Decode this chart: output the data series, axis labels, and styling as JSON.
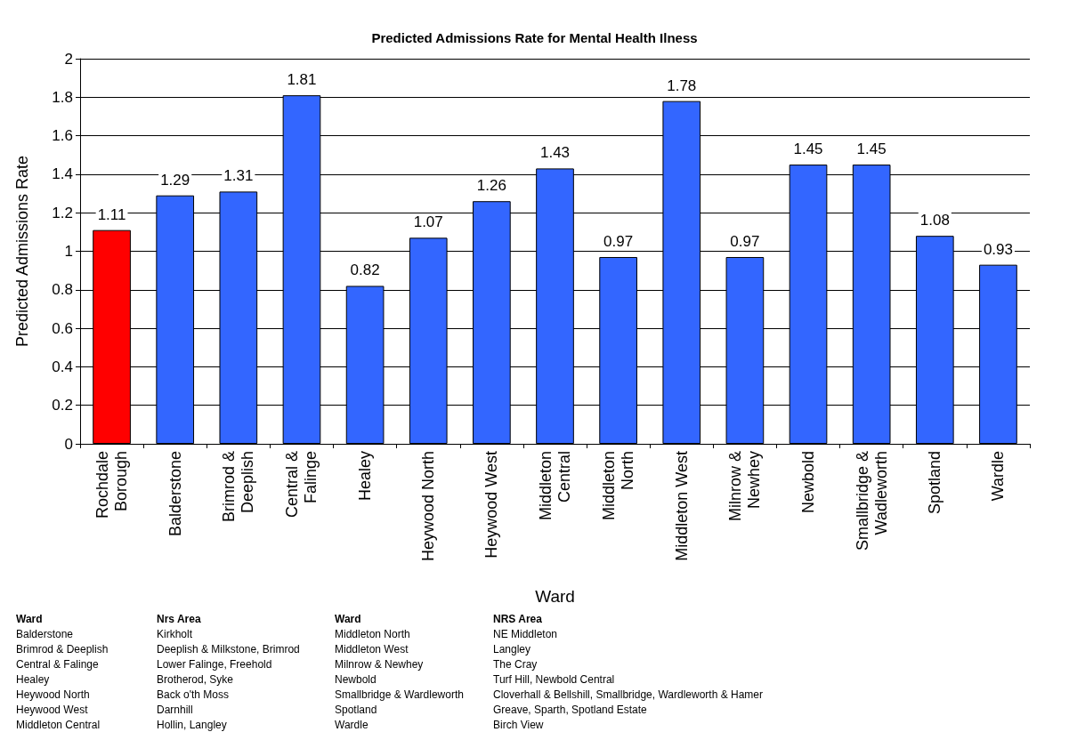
{
  "chart_data": {
    "type": "bar",
    "title": "Predicted Admissions Rate for Mental Health Ilness",
    "xlabel": "Ward",
    "ylabel": "Predicted Admissions Rate",
    "categories": [
      "Rochdale Borough",
      "Balderstone",
      "Brimrod & Deeplish",
      "Central & Falinge",
      "Healey",
      "Heywood North",
      "Heywood West",
      "Middleton Central",
      "Middleton North",
      "Middleton West",
      "Milnrow & Newhey",
      "Newbold",
      "Smallbridge & Wadleworth",
      "Spotland",
      "Wardle"
    ],
    "values": [
      1.11,
      1.29,
      1.31,
      1.81,
      0.82,
      1.07,
      1.26,
      1.43,
      0.97,
      1.78,
      0.97,
      1.45,
      1.45,
      1.08,
      0.93
    ],
    "colors": [
      "#ff0000",
      "#3366ff",
      "#3366ff",
      "#3366ff",
      "#3366ff",
      "#3366ff",
      "#3366ff",
      "#3366ff",
      "#3366ff",
      "#3366ff",
      "#3366ff",
      "#3366ff",
      "#3366ff",
      "#3366ff",
      "#3366ff"
    ],
    "ylim": [
      0,
      2
    ],
    "yticks": [
      0,
      0.2,
      0.4,
      0.6,
      0.8,
      1,
      1.2,
      1.4,
      1.6,
      1.8,
      2
    ],
    "grid": "y",
    "data_labels": true,
    "annotations": [
      "Ward\nBalderstone\nBrimrod & Deeplish\nCentral & Falinge\nHealey\nHeywood North\nHeywood West\nMiddleton Central",
      "Nrs Area\nKirkholt\nDeeplish & Milkstone, Brimrod\nLower Falinge, Freehold\nBrotherod, Syke\nBack o'th Moss\nDarnhill\nHollin, Langley",
      "Ward\nMiddleton North\nMiddleton West\nMilnrow & Newhey\nNewbold\nSmallbridge & Wardleworth\nSpotland\nWardle",
      "NRS Area\nNE Middleton\nLangley\nThe Cray\nTurf Hill, Newbold Central\nCloverhall & Bellshill, Smallbridge, Wardleworth & Hamer\nGreave, Sparth, Spotland Estate\nBirch View"
    ]
  }
}
